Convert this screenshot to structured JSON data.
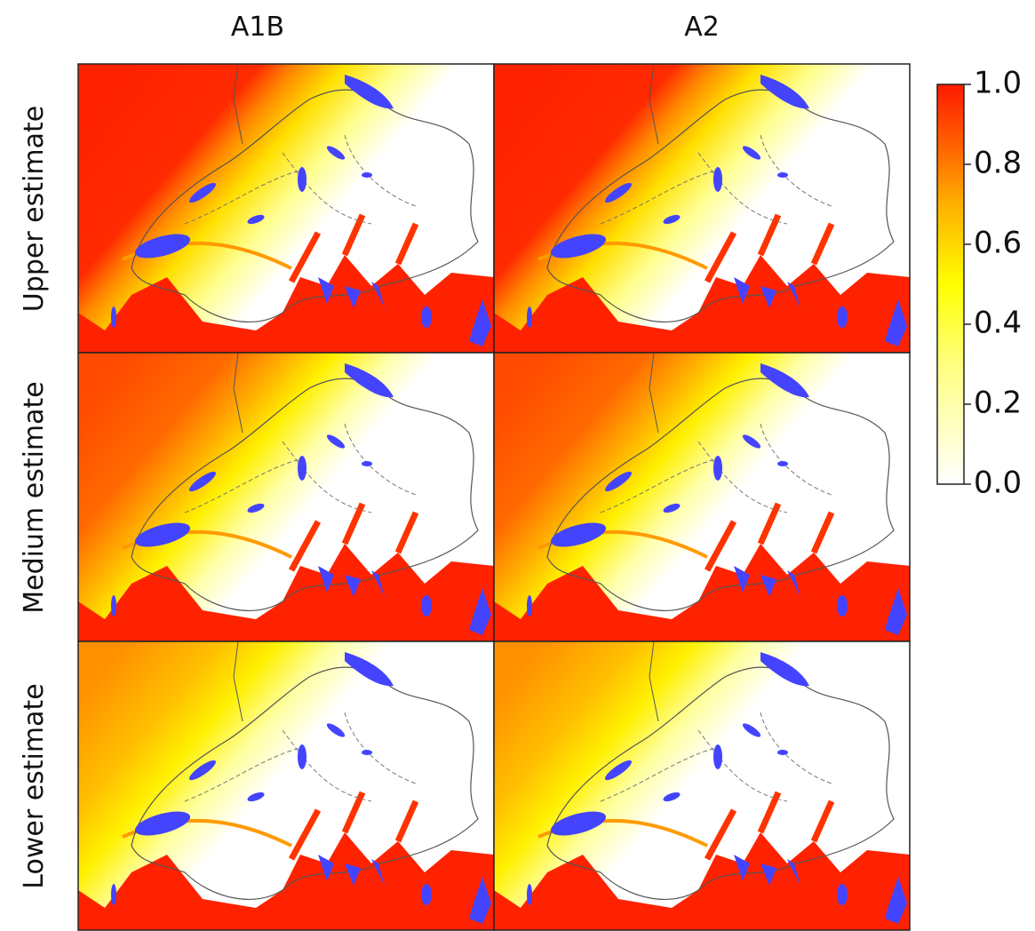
{
  "columns": [
    "A1B",
    "A2"
  ],
  "rows": [
    "Upper estimate",
    "Medium estimate",
    "Lower estimate"
  ],
  "colorbar": {
    "lim": [
      0,
      1
    ],
    "ticks": [
      {
        "value": 0,
        "label": "0.0"
      },
      {
        "value": 0.2,
        "label": "0.2"
      },
      {
        "value": 0.4,
        "label": "0.4"
      },
      {
        "value": 0.6,
        "label": "0.6"
      },
      {
        "value": 0.8,
        "label": "0.8"
      },
      {
        "value": 1,
        "label": "1.0"
      }
    ]
  }
}
